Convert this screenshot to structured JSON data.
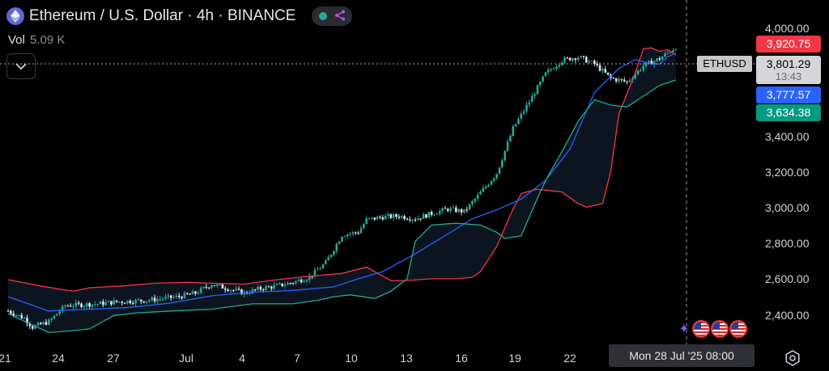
{
  "header": {
    "title": "Ethereum / U.S. Dollar · 4h · BINANCE",
    "volume_label": "Vol",
    "volume_value": "5.09 K",
    "logo_icon": "ethereum-icon",
    "status_dot_color": "#22ab94"
  },
  "price_tags": {
    "upper_band": "3,920.75",
    "symbol": "ETHUSD",
    "last_price": "3,801.29",
    "countdown": "13:43",
    "basis": "3,777.57",
    "lower_band": "3,634.38"
  },
  "colors": {
    "upper_band": "#f23645",
    "basis": "#2962ff",
    "lower_band": "#22ab94",
    "up_candle": "#26a69a",
    "down_candle": "#e0e3eb"
  },
  "crosshair": {
    "date_label": "Mon 28 Jul '25   08:00"
  },
  "chart_data": {
    "type": "candlestick",
    "indicator": "Bollinger Bands",
    "y_ticks": [
      "4,000.00",
      "3,400.00",
      "3,200.00",
      "3,000.00",
      "2,800.00",
      "2,600.00",
      "2,400.00"
    ],
    "x_ticks": [
      "21",
      "24",
      "27",
      "Jul",
      "4",
      "7",
      "10",
      "13",
      "16",
      "19",
      "22"
    ],
    "ylim": [
      2300,
      4030
    ],
    "grid": false,
    "series": [
      {
        "key": "upper",
        "x": [
          0,
          4,
          8,
          10,
          14,
          18,
          22,
          25,
          29,
          33,
          37,
          41,
          44,
          47,
          49,
          52,
          55,
          57,
          58,
          60,
          62,
          63,
          64,
          65,
          66,
          68,
          70,
          71,
          73,
          74,
          75,
          77,
          78,
          79,
          80,
          81,
          82
        ],
        "y": [
          2595,
          2560,
          2530,
          2550,
          2560,
          2575,
          2580,
          2575,
          2570,
          2595,
          2615,
          2630,
          2665,
          2590,
          2590,
          2600,
          2600,
          2608,
          2640,
          2780,
          2990,
          3075,
          3090,
          3100,
          3095,
          3085,
          3020,
          3000,
          3020,
          3200,
          3520,
          3750,
          3885,
          3890,
          3870,
          3880,
          3850
        ]
      },
      {
        "key": "basis",
        "x": [
          0,
          5,
          10,
          15,
          20,
          25,
          30,
          35,
          40,
          43,
          46,
          50,
          54,
          57,
          60,
          63,
          66,
          69,
          72,
          75,
          77,
          79,
          80,
          81,
          82
        ],
        "y": [
          2500,
          2420,
          2430,
          2440,
          2465,
          2505,
          2525,
          2535,
          2555,
          2600,
          2640,
          2740,
          2850,
          2935,
          2985,
          3045,
          3150,
          3325,
          3640,
          3775,
          3825,
          3800,
          3800,
          3840,
          3860
        ]
      },
      {
        "key": "lower",
        "x": [
          0,
          5,
          8,
          10,
          13,
          16,
          20,
          25,
          30,
          35,
          38,
          40,
          42,
          45,
          47,
          49,
          50,
          52,
          55,
          58,
          60,
          61,
          63,
          65,
          66,
          68,
          70,
          72,
          74,
          76,
          78,
          80,
          82
        ],
        "y": [
          2405,
          2300,
          2310,
          2320,
          2395,
          2410,
          2420,
          2430,
          2460,
          2460,
          2480,
          2500,
          2510,
          2490,
          2530,
          2600,
          2810,
          2900,
          2910,
          2900,
          2860,
          2825,
          2840,
          3050,
          3150,
          3310,
          3480,
          3600,
          3570,
          3560,
          3620,
          3680,
          3710
        ]
      }
    ],
    "close_path": {
      "x": [
        0,
        2,
        3,
        5,
        7,
        9,
        11,
        13,
        15,
        17,
        19,
        21,
        23,
        25,
        27,
        29,
        31,
        33,
        35,
        37,
        39,
        41,
        43,
        44,
        46,
        48,
        50,
        52,
        54,
        56,
        58,
        60,
        62,
        64,
        66,
        68,
        70,
        72,
        74,
        76,
        78,
        80,
        82
      ],
      "y": [
        2420,
        2380,
        2330,
        2360,
        2450,
        2455,
        2460,
        2470,
        2475,
        2480,
        2490,
        2500,
        2520,
        2570,
        2545,
        2520,
        2545,
        2560,
        2580,
        2610,
        2690,
        2845,
        2860,
        2930,
        2945,
        2950,
        2935,
        2965,
        2990,
        2975,
        3080,
        3190,
        3440,
        3590,
        3745,
        3820,
        3840,
        3800,
        3720,
        3700,
        3790,
        3830,
        3895
      ]
    }
  }
}
